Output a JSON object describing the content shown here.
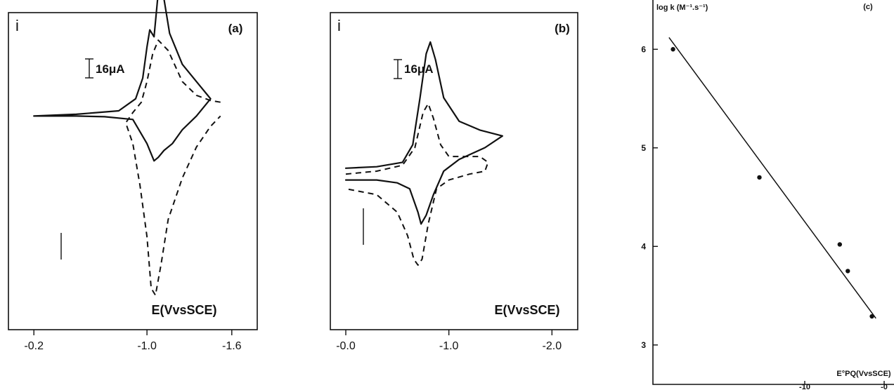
{
  "colors": {
    "ink": "#111111",
    "background": "#ffffff"
  },
  "chart_data": [
    {
      "type": "line",
      "panel_label": "(a)",
      "ylabel": "i",
      "xlabel": "E(VvsSCE)",
      "scale_bar_label": "16μA",
      "scale_bar_value_uA": 16,
      "x_tick_labels": [
        "-0.2",
        "-1.0",
        "-1.6"
      ],
      "x_ticks": [
        -0.2,
        -1.0,
        -1.6
      ],
      "xlim": [
        -0.02,
        -1.78
      ],
      "ylim": [
        -62,
        30
      ],
      "series": [
        {
          "style": "solid",
          "x": [
            -0.2,
            -0.5,
            -0.8,
            -0.92,
            -0.97,
            -1.0,
            -1.02,
            -1.05,
            -1.08,
            -1.12,
            -1.16,
            -1.25,
            -1.35,
            -1.42,
            -1.45,
            -1.35,
            -1.25,
            -1.18,
            -1.12,
            -1.08,
            -1.05,
            -1.0,
            -0.9,
            -0.7,
            -0.5,
            -0.2
          ],
          "y": [
            0,
            0.5,
            1.5,
            5,
            11,
            20,
            25,
            23,
            36,
            34,
            24,
            15,
            10,
            6.5,
            5,
            0,
            -4,
            -8,
            -10,
            -12,
            -13,
            -8,
            -1,
            -0.2,
            0,
            0
          ]
        },
        {
          "style": "dashed",
          "x": [
            -1.52,
            -1.45,
            -1.35,
            -1.25,
            -1.15,
            -1.08,
            -1.04,
            -1.0,
            -0.96,
            -0.9,
            -0.85,
            -0.9,
            -0.95,
            -1.0,
            -1.03,
            -1.06,
            -1.1,
            -1.15,
            -1.25,
            -1.35,
            -1.45,
            -1.52
          ],
          "y": [
            4,
            4.5,
            6,
            10,
            19,
            22,
            18,
            10,
            4,
            1,
            -2,
            -8,
            -20,
            -35,
            -50,
            -52,
            -43,
            -30,
            -18,
            -9,
            -3,
            0
          ]
        }
      ]
    },
    {
      "type": "line",
      "panel_label": "(b)",
      "ylabel": "i",
      "xlabel": "E(VvsSCE)",
      "scale_bar_label": "16μA",
      "scale_bar_value_uA": 16,
      "x_tick_labels": [
        "-0.0",
        "-1.0",
        "-2.0"
      ],
      "x_ticks": [
        0,
        -1.0,
        -2.0
      ],
      "xlim": [
        0.15,
        -2.25
      ],
      "ylim": [
        -54,
        54
      ],
      "series": [
        {
          "style": "solid",
          "x": [
            0,
            -0.3,
            -0.55,
            -0.65,
            -0.72,
            -0.78,
            -0.82,
            -0.87,
            -0.95,
            -1.1,
            -1.3,
            -1.52,
            -1.35,
            -1.1,
            -0.95,
            -0.85,
            -0.78,
            -0.73,
            -0.7,
            -0.62,
            -0.5,
            -0.3,
            0
          ],
          "y": [
            1,
            1.5,
            3,
            9,
            25,
            40,
            44,
            38,
            25,
            17,
            14,
            12,
            8,
            4,
            0,
            -8,
            -15,
            -18,
            -14,
            -6,
            -4,
            -3,
            -3
          ]
        },
        {
          "style": "dashed",
          "x": [
            0,
            -0.3,
            -0.55,
            -0.67,
            -0.75,
            -0.8,
            -0.85,
            -0.92,
            -1.0,
            -1.15,
            -1.3,
            -1.38,
            -1.35,
            -1.2,
            -1.0,
            -0.88,
            -0.8,
            -0.74,
            -0.7,
            -0.66,
            -0.6,
            -0.5,
            -0.3,
            0
          ],
          "y": [
            -1,
            0,
            2,
            8,
            20,
            23,
            18,
            9,
            5,
            5,
            5,
            3,
            0,
            -1,
            -3,
            -6,
            -18,
            -30,
            -32,
            -30,
            -22,
            -14,
            -8,
            -6
          ]
        }
      ]
    },
    {
      "type": "scatter",
      "panel_label": "(c)",
      "ylabel": "log k (M⁻¹.s⁻¹)",
      "xlabel": "E°PQ(VvsSCE)",
      "y_ticks": [
        3,
        4,
        5,
        6
      ],
      "y_tick_labels": [
        "3",
        "4",
        "5",
        "6"
      ],
      "x_tick_labels": [
        "-10",
        "-0"
      ],
      "ylim": [
        2.6,
        6.5
      ],
      "xlim": [
        -1.75,
        -0.55
      ],
      "points": {
        "x": [
          -1.65,
          -1.22,
          -0.82,
          -0.78,
          -0.66
        ],
        "y": [
          6.0,
          4.7,
          4.02,
          3.75,
          3.29
        ]
      },
      "fit_line": {
        "x": [
          -1.67,
          -0.64
        ],
        "y": [
          6.12,
          3.27
        ]
      }
    }
  ]
}
